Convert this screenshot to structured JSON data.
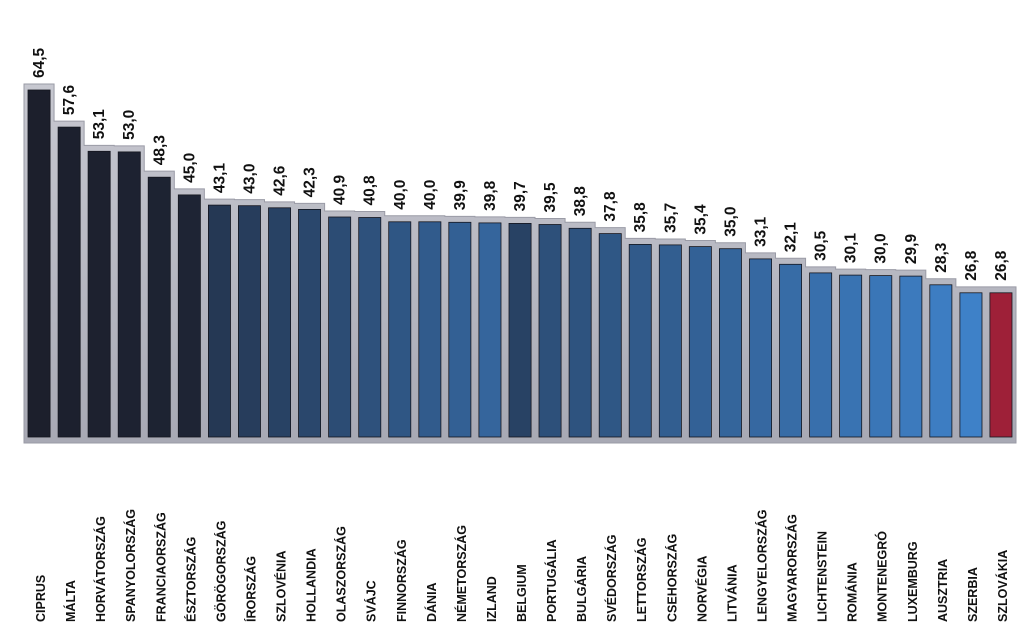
{
  "chart_data": {
    "type": "bar",
    "categories": [
      "CIPRUS",
      "MÁLTA",
      "HORVÁTORSZÁG",
      "SPANYOLORSZÁG",
      "FRANCIAORSZÁG",
      "ÉSZTORSZÁG",
      "GÖRÖGORSZÁG",
      "ÍRORSZÁG",
      "SZLOVÉNIA",
      "HOLLANDIA",
      "OLASZORSZÁG",
      "SVÁJC",
      "FINNORSZÁG",
      "DÁNIA",
      "NÉMETORSZÁG",
      "IZLAND",
      "BELGIUM",
      "PORTUGÁLIA",
      "BULGÁRIA",
      "SVÉDORSZÁG",
      "LETTORSZÁG",
      "CSEHORSZÁG",
      "NORVÉGIA",
      "LITVÁNIA",
      "LENGYELORSZÁG",
      "MAGYARORSZÁG",
      "LICHTENSTEIN",
      "ROMÁNIA",
      "MONTENEGRÓ",
      "LUXEMBURG",
      "AUSZTRIA",
      "SZERBIA",
      "SZLOVÁKIA"
    ],
    "values": [
      64.5,
      57.6,
      53.1,
      53.0,
      48.3,
      45.0,
      43.1,
      43.0,
      42.6,
      42.3,
      40.9,
      40.8,
      40.0,
      40.0,
      39.9,
      39.8,
      39.7,
      39.5,
      38.8,
      37.8,
      35.8,
      35.7,
      35.4,
      35.0,
      33.1,
      32.1,
      30.5,
      30.1,
      30.0,
      29.9,
      28.3,
      26.8,
      26.8
    ],
    "value_labels": [
      "64,5",
      "57,6",
      "53,1",
      "53,0",
      "48,3",
      "45,0",
      "43,1",
      "43,0",
      "42,6",
      "42,3",
      "40,9",
      "40,8",
      "40,0",
      "40,0",
      "39,9",
      "39,8",
      "39,7",
      "39,5",
      "38,8",
      "37,8",
      "35,8",
      "35,7",
      "35,4",
      "35,0",
      "33,1",
      "32,1",
      "30,5",
      "30,1",
      "30,0",
      "29,9",
      "28,3",
      "26,8",
      "26,8"
    ],
    "highlight_category": "SZLOVÁKIA",
    "colors": {
      "dark": "#1c1f2c",
      "light": "#3f83cc",
      "highlight": "#9e2038",
      "frame": "#b3b3bd"
    },
    "title": "",
    "xlabel": "",
    "ylabel": "",
    "ylim": [
      0,
      66
    ],
    "grid": false,
    "legend": "none"
  }
}
